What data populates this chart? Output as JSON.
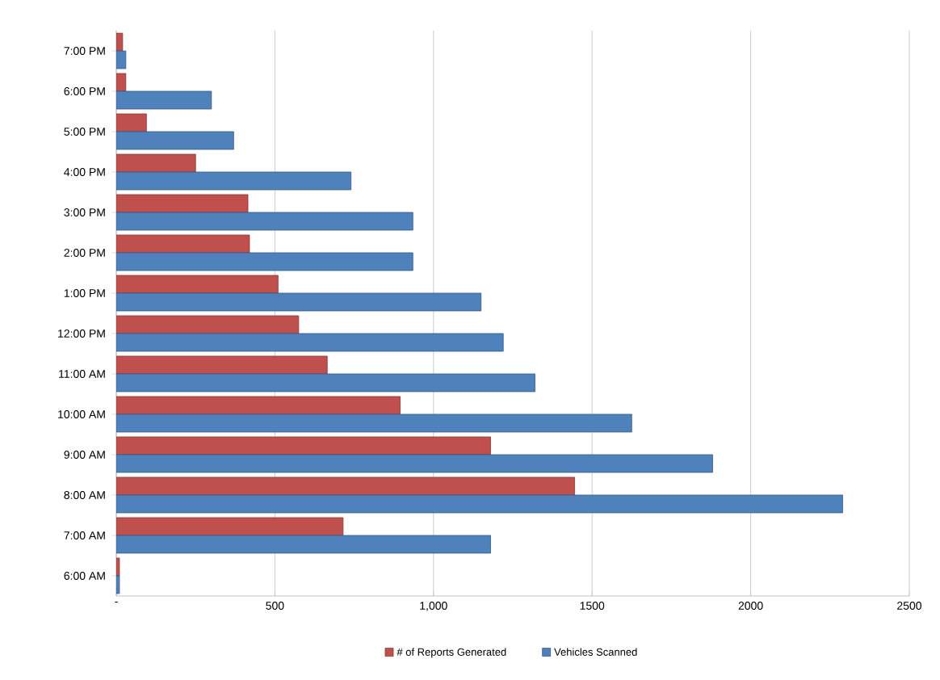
{
  "chart_data": {
    "type": "bar",
    "orientation": "horizontal",
    "categories": [
      "7:00 PM",
      "6:00 PM",
      "5:00 PM",
      "4:00 PM",
      "3:00 PM",
      "2:00 PM",
      "1:00 PM",
      "12:00 PM",
      "11:00 AM",
      "10:00 AM",
      "9:00 AM",
      "8:00 AM",
      "7:00 AM",
      "6:00 AM"
    ],
    "series": [
      {
        "name": "# of Reports Generated",
        "color": "#c0504d",
        "values": [
          20,
          30,
          95,
          250,
          415,
          420,
          510,
          575,
          665,
          895,
          1180,
          1445,
          715,
          10
        ]
      },
      {
        "name": "Vehicles Scanned",
        "color": "#4f81bd",
        "values": [
          30,
          300,
          370,
          740,
          935,
          935,
          1150,
          1220,
          1320,
          1625,
          1880,
          2290,
          1180,
          10
        ]
      }
    ],
    "xlim": [
      0,
      2500
    ],
    "xticks": [
      {
        "value": 0,
        "label": "-"
      },
      500,
      {
        "value": 1000,
        "label": "1,000"
      },
      1500,
      2000,
      2500
    ],
    "grid": "x",
    "legend": "bottom"
  }
}
